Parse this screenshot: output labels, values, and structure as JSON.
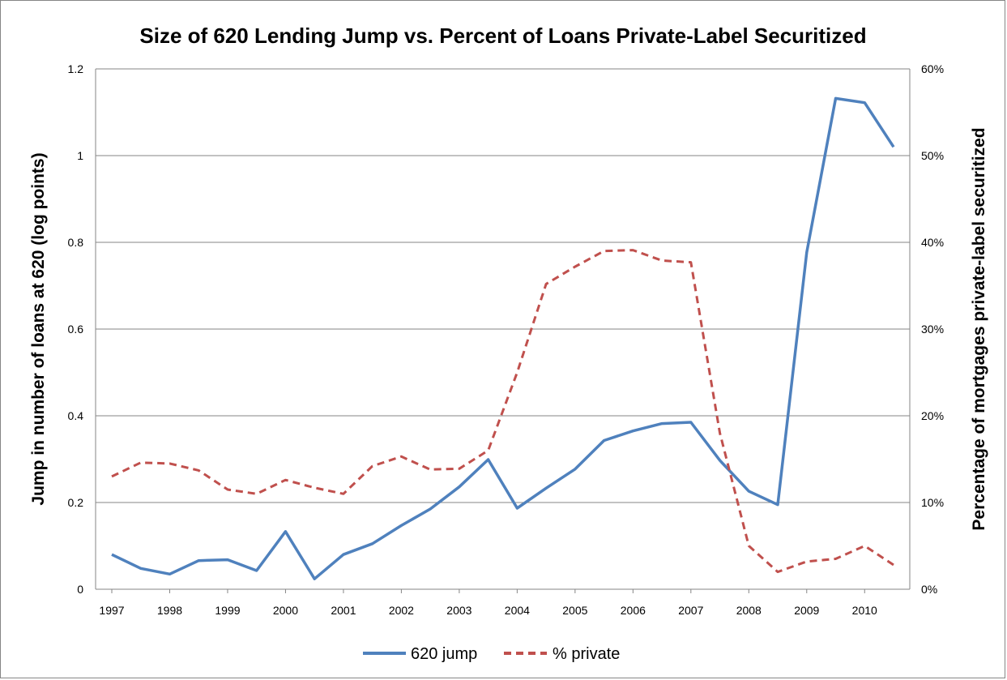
{
  "chart_data": {
    "type": "line",
    "title": "Size of 620 Lending Jump vs. Percent of Loans Private-Label Securitized",
    "ylabel": "Jump in number of loans at 620 (log points)",
    "y2label": "Percentage of mortgages private-label securitized",
    "xlabel": "",
    "x": [
      1997,
      1997.5,
      1998,
      1998.5,
      1999,
      1999.5,
      2000,
      2000.5,
      2001,
      2001.5,
      2002,
      2002.5,
      2003,
      2003.5,
      2004,
      2004.5,
      2005,
      2005.5,
      2006,
      2006.5,
      2007,
      2007.5,
      2008,
      2008.5,
      2009,
      2009.5,
      2010,
      2010.5
    ],
    "x_tick_labels": [
      "1997",
      "1998",
      "1999",
      "2000",
      "2001",
      "2002",
      "2003",
      "2004",
      "2005",
      "2006",
      "2007",
      "2008",
      "2009",
      "2010"
    ],
    "ylim": [
      0,
      1.2
    ],
    "y_tick_labels": [
      "0",
      "0.2",
      "0.4",
      "0.6",
      "0.8",
      "1",
      "1.2"
    ],
    "y2lim": [
      0,
      60
    ],
    "y2_tick_labels": [
      "0%",
      "10%",
      "20%",
      "30%",
      "40%",
      "50%",
      "60%"
    ],
    "grid": true,
    "legend_position": "bottom",
    "series": [
      {
        "name": "620 jump",
        "axis": "left",
        "style": "solid",
        "color": "#4F81BD",
        "values": [
          0.08,
          0.048,
          0.035,
          0.066,
          0.068,
          0.043,
          0.133,
          0.024,
          0.08,
          0.105,
          0.147,
          0.185,
          0.236,
          0.299,
          0.187,
          0.233,
          0.277,
          0.343,
          0.365,
          0.382,
          0.385,
          0.297,
          0.226,
          0.195,
          0.777,
          1.132,
          1.122,
          1.02
        ]
      },
      {
        "name": "% private",
        "axis": "right",
        "style": "dashed",
        "color": "#C0504D",
        "values": [
          13.0,
          14.6,
          14.5,
          13.7,
          11.5,
          11.0,
          12.6,
          11.7,
          11.0,
          14.2,
          15.3,
          13.8,
          13.9,
          16.0,
          25.0,
          35.2,
          37.2,
          39.0,
          39.1,
          37.9,
          37.7,
          18.0,
          5.0,
          2.0,
          3.2,
          3.5,
          5.0,
          2.8
        ]
      }
    ]
  }
}
